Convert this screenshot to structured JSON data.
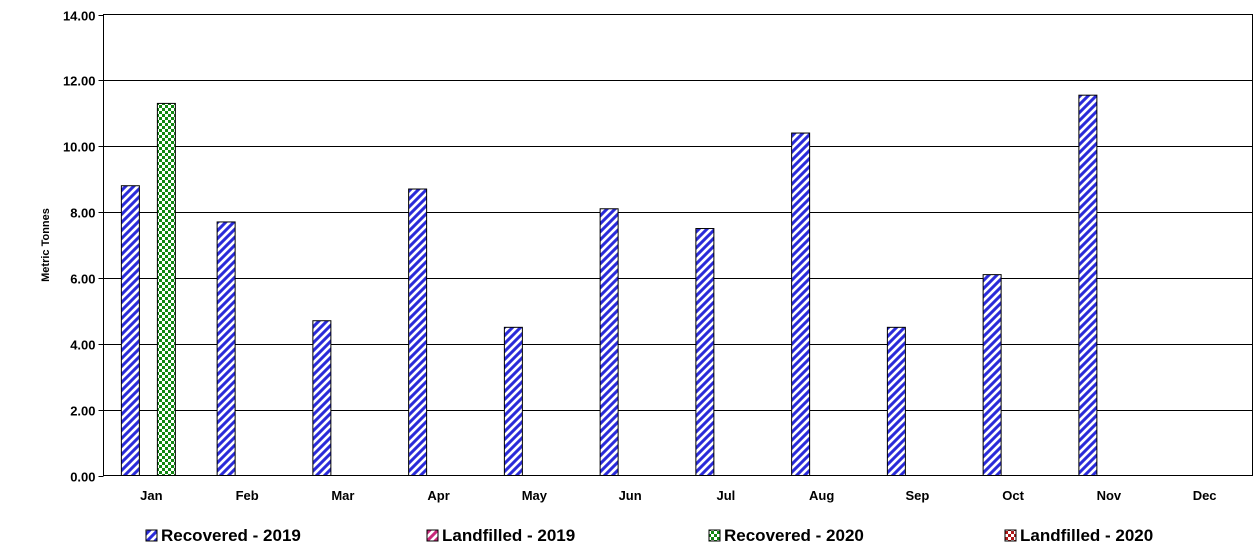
{
  "chart_data": {
    "type": "bar",
    "title": "",
    "xlabel": "",
    "ylabel": "Metric Tonnes",
    "ylim": [
      0,
      14
    ],
    "yticks": [
      "0.00",
      "2.00",
      "4.00",
      "6.00",
      "8.00",
      "10.00",
      "12.00",
      "14.00"
    ],
    "grid": true,
    "legend_position": "bottom",
    "categories": [
      "Jan",
      "Feb",
      "Mar",
      "Apr",
      "May",
      "Jun",
      "Jul",
      "Aug",
      "Sep",
      "Oct",
      "Nov",
      "Dec"
    ],
    "series": [
      {
        "name": "Recovered - 2019",
        "pattern": "diagonal-stripes",
        "color": "#2b2bd9",
        "values": [
          8.8,
          7.7,
          4.7,
          8.7,
          4.5,
          8.1,
          7.5,
          10.4,
          4.5,
          6.1,
          11.55,
          null
        ]
      },
      {
        "name": "Landfilled - 2019",
        "pattern": "diagonal-stripes",
        "color": "#c8287a",
        "values": [
          null,
          null,
          null,
          null,
          null,
          null,
          null,
          null,
          null,
          null,
          null,
          null
        ]
      },
      {
        "name": "Recovered - 2020",
        "pattern": "checkerboard",
        "color": "#118811",
        "values": [
          11.3,
          null,
          null,
          null,
          null,
          null,
          null,
          null,
          null,
          null,
          null,
          null
        ]
      },
      {
        "name": "Landfilled - 2020",
        "pattern": "checkerboard",
        "color": "#b01818",
        "values": [
          null,
          null,
          null,
          null,
          null,
          null,
          null,
          null,
          null,
          null,
          null,
          null
        ]
      }
    ]
  }
}
